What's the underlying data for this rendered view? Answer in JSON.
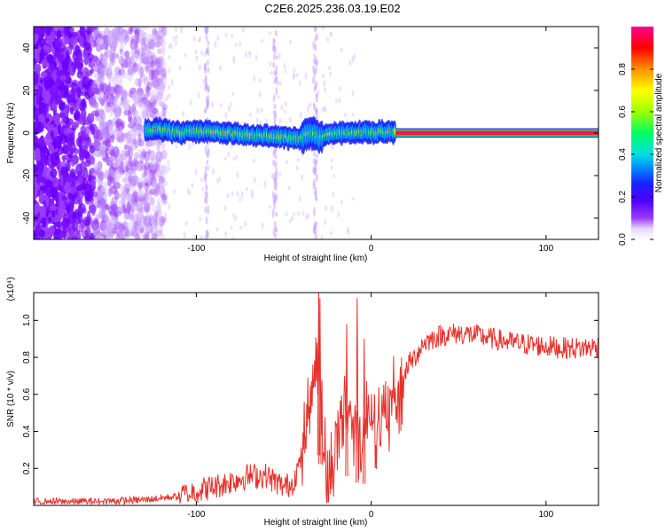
{
  "title": "C2E6.2025.236.03.19.E02",
  "colors": {
    "snr_line": "#e8302a",
    "colormap": [
      "#ffffff",
      "#d8c8ff",
      "#9a3cff",
      "#6a00ff",
      "#1a00ff",
      "#0060ff",
      "#00d8ff",
      "#00ff70",
      "#a0ff00",
      "#ffff00",
      "#ff9000",
      "#ff0000",
      "#ff0090"
    ]
  },
  "chart_data": [
    {
      "type": "heatmap",
      "title": "C2E6.2025.236.03.19.E02",
      "xlabel": "Height of straight line (km)",
      "ylabel": "Frequency (Hz)",
      "xlim": [
        -193,
        130
      ],
      "ylim": [
        -50,
        50
      ],
      "x_ticks": [
        "-100",
        "0",
        "100"
      ],
      "y_ticks": [
        "-40",
        "-20",
        "0",
        "20",
        "40"
      ],
      "colorbar": {
        "label": "Normalized spectral amplitude",
        "range": [
          0,
          1
        ],
        "ticks": [
          "0.0",
          "0.2",
          "0.4",
          "0.6",
          "0.8"
        ]
      },
      "ridge": [
        {
          "x": -129,
          "y": 1.5
        },
        {
          "x": -120,
          "y": 1.5
        },
        {
          "x": -110,
          "y": 0
        },
        {
          "x": -100,
          "y": 1
        },
        {
          "x": -90,
          "y": 0.5
        },
        {
          "x": -80,
          "y": 0
        },
        {
          "x": -70,
          "y": -1
        },
        {
          "x": -60,
          "y": -1.5
        },
        {
          "x": -50,
          "y": -2
        },
        {
          "x": -40,
          "y": -2.5
        },
        {
          "x": -35,
          "y": 0.5
        },
        {
          "x": -30,
          "y": -2
        },
        {
          "x": -20,
          "y": 0
        },
        {
          "x": -10,
          "y": 0.5
        },
        {
          "x": 0,
          "y": 0.5
        },
        {
          "x": 12,
          "y": 0.5
        },
        {
          "x": 130,
          "y": 0
        }
      ]
    },
    {
      "type": "line",
      "xlabel": "Height of straight line (km)",
      "ylabel": "SNR (10 * v/v)",
      "y_scale_label": "(x10⁴)",
      "xlim": [
        -193,
        130
      ],
      "ylim": [
        0,
        1.15
      ],
      "x_ticks": [
        "-100",
        "0",
        "100"
      ],
      "y_ticks": [
        "0.2",
        "0.4",
        "0.6",
        "0.8",
        "1.0"
      ],
      "series": [
        {
          "x": [
            -193,
            -160,
            -130,
            -110,
            -100,
            -90,
            -80,
            -70,
            -60,
            -50,
            -45,
            -40,
            -35,
            -30,
            -28,
            -25,
            -20,
            -15,
            -10,
            -5,
            0,
            5,
            10,
            15,
            20,
            25,
            30,
            40,
            50,
            60,
            70,
            80,
            90,
            100,
            110,
            120,
            130
          ],
          "y": [
            0.02,
            0.02,
            0.03,
            0.05,
            0.08,
            0.1,
            0.13,
            0.16,
            0.16,
            0.1,
            0.12,
            0.25,
            0.55,
            0.9,
            0.45,
            0.05,
            0.35,
            0.55,
            0.45,
            0.35,
            0.55,
            0.4,
            0.5,
            0.55,
            0.75,
            0.8,
            0.88,
            0.92,
            0.93,
            0.92,
            0.9,
            0.88,
            0.87,
            0.86,
            0.85,
            0.85,
            0.86
          ]
        }
      ]
    }
  ]
}
